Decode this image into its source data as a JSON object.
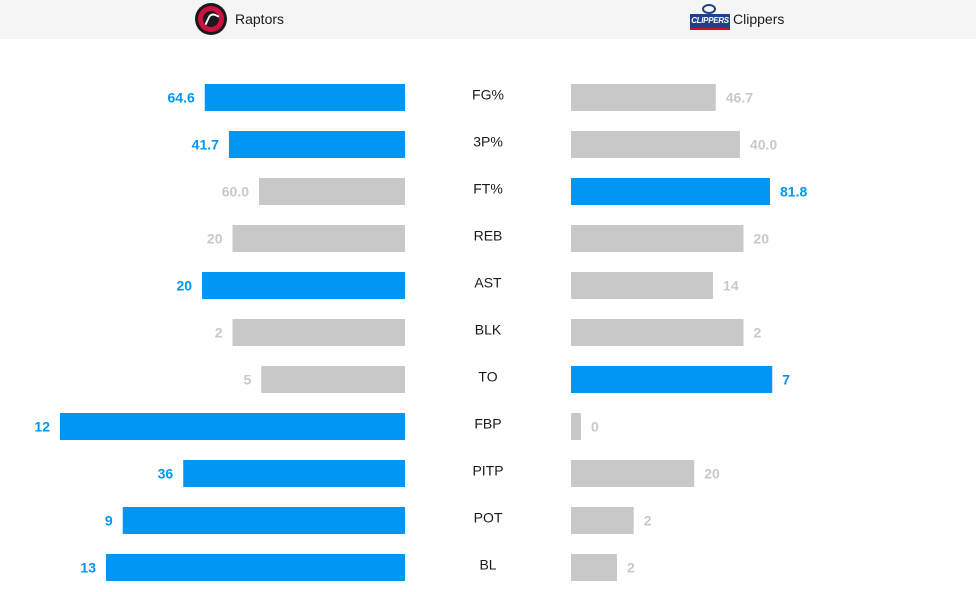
{
  "teams": {
    "left": {
      "name": "Raptors",
      "logo_icon": "raptors-logo-icon"
    },
    "right": {
      "name": "Clippers",
      "logo_icon": "clippers-logo-icon",
      "logo_text": "CLIPPERS"
    }
  },
  "colors": {
    "highlight": "#0096f2",
    "neutral": "#c8c8c8",
    "text_dark": "#1a1a1a"
  },
  "chart_data": {
    "type": "bar",
    "orientation": "horizontal-diverging",
    "categories": [
      "FG%",
      "3P%",
      "FT%",
      "REB",
      "AST",
      "BLK",
      "TO",
      "FBP",
      "PITP",
      "POT",
      "BL"
    ],
    "series": [
      {
        "name": "Raptors",
        "values": [
          "64.6",
          "41.7",
          "60.0",
          "20",
          "20",
          "2",
          "5",
          "12",
          "36",
          "9",
          "13"
        ],
        "highlighted": [
          true,
          true,
          false,
          false,
          true,
          false,
          false,
          true,
          true,
          true,
          true
        ]
      },
      {
        "name": "Clippers",
        "values": [
          "46.7",
          "40.0",
          "81.8",
          "20",
          "14",
          "2",
          "7",
          "0",
          "20",
          "2",
          "2"
        ],
        "highlighted": [
          false,
          false,
          true,
          false,
          false,
          false,
          true,
          false,
          false,
          false,
          false
        ]
      }
    ],
    "grid": false,
    "legend": "top"
  }
}
